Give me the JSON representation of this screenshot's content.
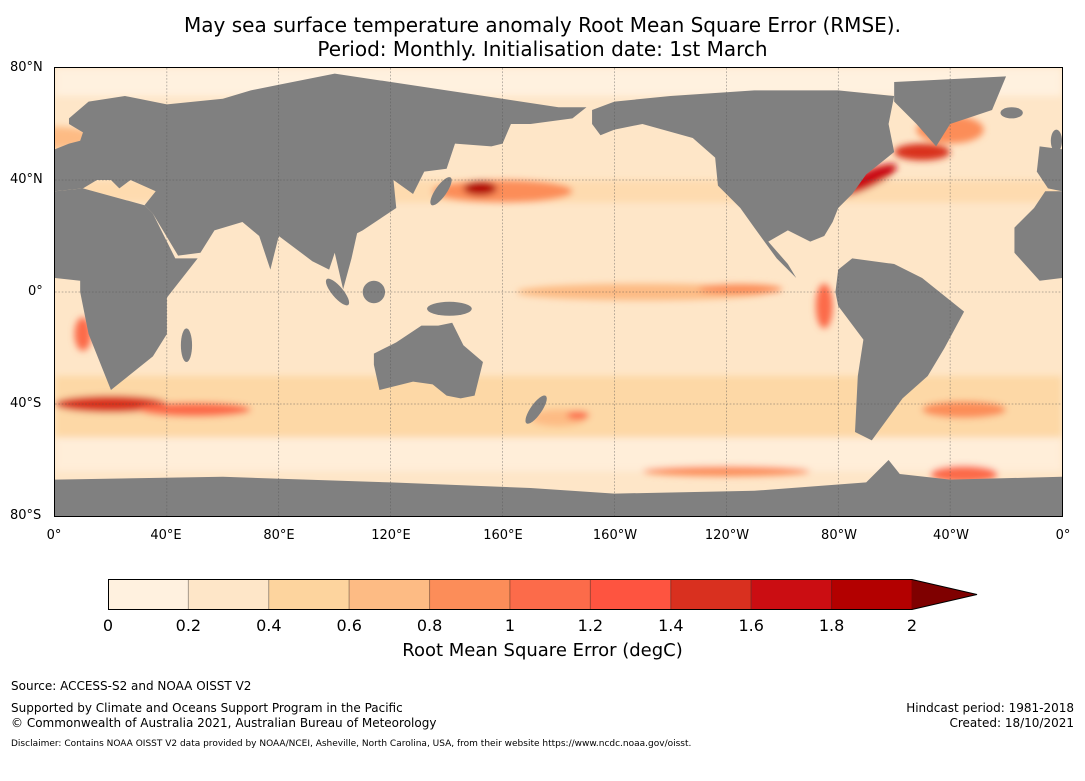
{
  "title": {
    "line1": "May sea surface temperature anomaly Root Mean Square Error (RMSE).",
    "line2": "Period: Monthly. Initialisation date: 1st March"
  },
  "map": {
    "lat_labels": [
      "80°N",
      "40°N",
      "0°",
      "40°S",
      "80°S"
    ],
    "lon_labels": [
      "0°",
      "40°E",
      "80°E",
      "120°E",
      "160°E",
      "160°W",
      "120°W",
      "80°W",
      "40°W",
      "0°"
    ],
    "land_color": "#808080",
    "ocean_base_color": "#fee6c8"
  },
  "colorbar": {
    "label": "Root Mean Square Error (degC)",
    "ticks": [
      "0",
      "0.2",
      "0.4",
      "0.6",
      "0.8",
      "1",
      "1.2",
      "1.4",
      "1.6",
      "1.8",
      "2"
    ],
    "colors": [
      "#fff1df",
      "#fee6c8",
      "#fdd49e",
      "#fdbb84",
      "#fc8d59",
      "#fc6b4a",
      "#fe5440",
      "#d9301f",
      "#cb0d12",
      "#b30000"
    ],
    "extend_color": "#7f0000"
  },
  "footer": {
    "source": "Source: ACCESS-S2 and NOAA OISST V2",
    "supported": "Supported by Climate and Oceans Support Program in the Pacific",
    "copyright": "© Commonwealth of Australia 2021, Australian Bureau of Meteorology",
    "hindcast": "Hindcast period: 1981-2018",
    "created": "Created: 18/10/2021",
    "disclaimer": "Disclaimer: Contains NOAA OISST V2 data provided by NOAA/NCEI, Asheville, North Carolina, USA, from their website https://www.ncdc.noaa.gov/oisst."
  }
}
